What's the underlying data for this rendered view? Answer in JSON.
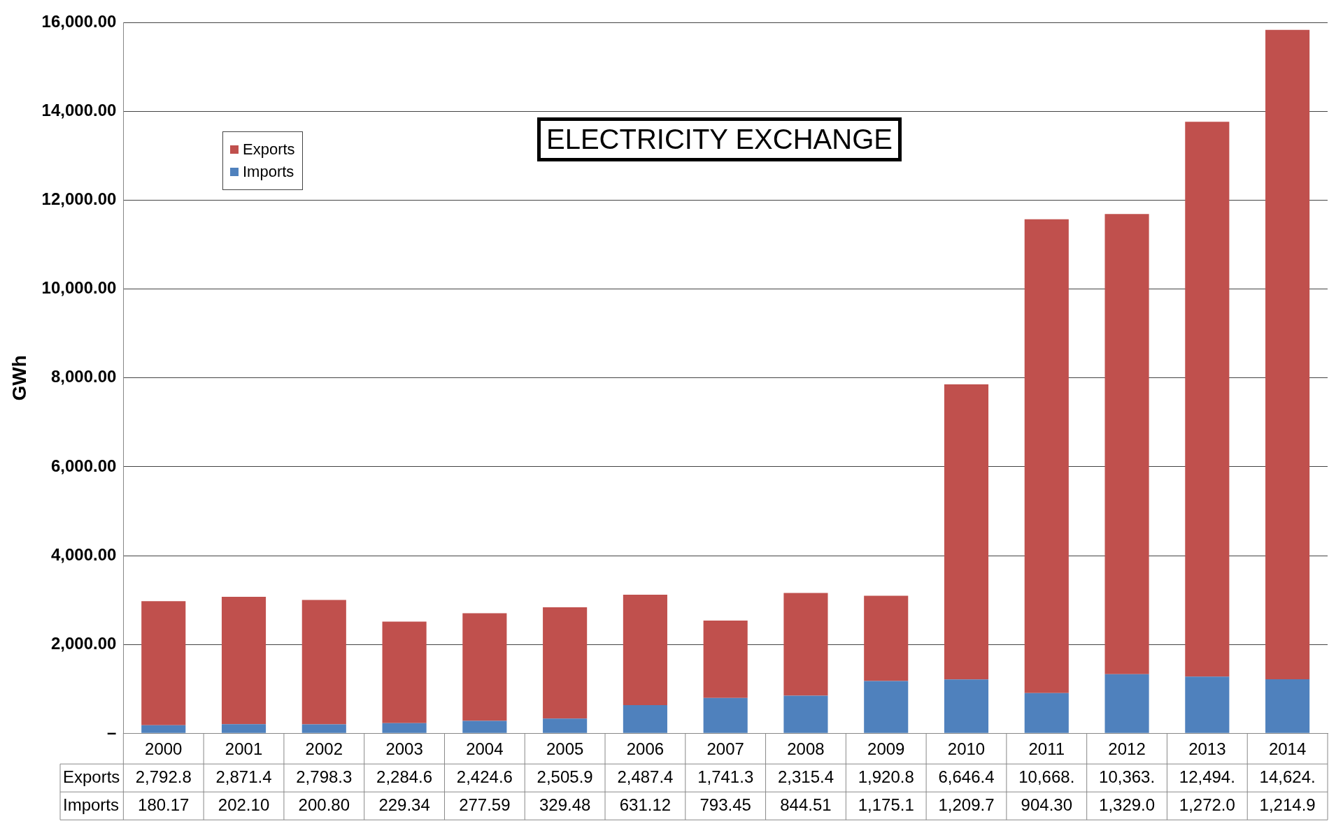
{
  "chart_data": {
    "type": "bar",
    "title": "ELECTRICITY EXCHANGE",
    "ylabel": "GWh",
    "stacked": true,
    "legend": "top left",
    "grid": "y",
    "categories": [
      "2000",
      "2001",
      "2002",
      "2003",
      "2004",
      "2005",
      "2006",
      "2007",
      "2008",
      "2009",
      "2010",
      "2011",
      "2012",
      "2013",
      "2014"
    ],
    "ylim": [
      0,
      16000
    ],
    "yticks": [
      {
        "value": 0,
        "label": "–"
      },
      {
        "value": 2000,
        "label": "2,000.00"
      },
      {
        "value": 4000,
        "label": "4,000.00"
      },
      {
        "value": 6000,
        "label": "6,000.00"
      },
      {
        "value": 8000,
        "label": "8,000.00"
      },
      {
        "value": 10000,
        "label": "10,000.00"
      },
      {
        "value": 12000,
        "label": "12,000.00"
      },
      {
        "value": 14000,
        "label": "14,000.00"
      },
      {
        "value": 16000,
        "label": "16,000.00"
      }
    ],
    "series": [
      {
        "name": "Imports",
        "color": "#4f81bd",
        "values": [
          180.17,
          202.1,
          200.8,
          229.34,
          277.59,
          329.48,
          631.12,
          793.45,
          844.51,
          1175.1,
          1209.7,
          904.3,
          1329.0,
          1272.0,
          1214.9
        ],
        "value_labels": [
          "180.17",
          "202.10",
          "200.80",
          "229.34",
          "277.59",
          "329.48",
          "631.12",
          "793.45",
          "844.51",
          "1,175.1",
          "1,209.7",
          "904.30",
          "1,329.0",
          "1,272.0",
          "1,214.9"
        ]
      },
      {
        "name": "Exports",
        "color": "#c0504d",
        "values": [
          2792.8,
          2871.4,
          2798.3,
          2284.6,
          2424.6,
          2505.9,
          2487.4,
          1741.3,
          2315.4,
          1920.8,
          6646.4,
          10668,
          10363,
          12494,
          14624
        ],
        "value_labels": [
          "2,792.8",
          "2,871.4",
          "2,798.3",
          "2,284.6",
          "2,424.6",
          "2,505.9",
          "2,487.4",
          "1,741.3",
          "2,315.4",
          "1,920.8",
          "6,646.4",
          "10,668.",
          "10,363.",
          "12,494.",
          "14,624."
        ]
      }
    ]
  }
}
